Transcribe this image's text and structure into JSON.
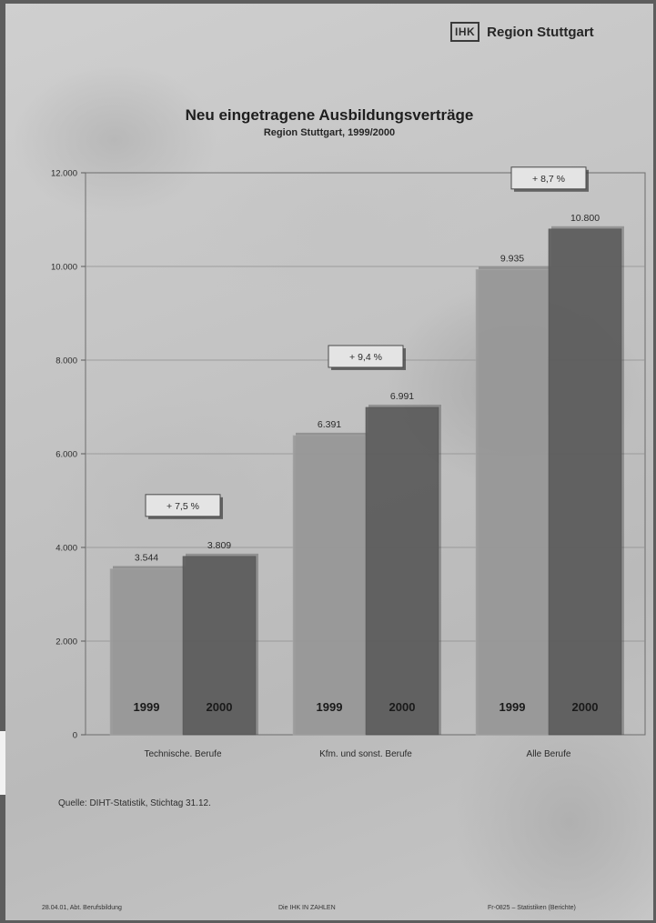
{
  "header": {
    "logo_mark": "IHK",
    "logo_text": "Region Stuttgart"
  },
  "source_note": "Quelle: DIHT-Statistik, Stichtag 31.12.",
  "footer": {
    "left": "28.04.01, Abt. Berufsbildung",
    "center": "Die IHK IN ZAHLEN",
    "right": "Fr-0825 – Statistiken (Berichte)"
  },
  "colors": {
    "bar_1999": "#9a9a9a",
    "bar_2000": "#5e5e5e",
    "gridline": "#8f8f8f"
  },
  "chart_data": {
    "type": "bar",
    "title": "Neu eingetragene Ausbildungsverträge",
    "subtitle": "Region Stuttgart, 1999/2000",
    "categories": [
      "Technische. Berufe",
      "Kfm. und sonst. Berufe",
      "Alle Berufe"
    ],
    "series": [
      {
        "name": "1999",
        "values": [
          3544,
          6391,
          9935
        ],
        "value_labels": [
          "3.544",
          "6.391",
          "9.935"
        ]
      },
      {
        "name": "2000",
        "values": [
          3809,
          6991,
          10800
        ],
        "value_labels": [
          "3.809",
          "6.991",
          "10.800"
        ]
      }
    ],
    "change_labels": [
      "+ 7,5 %",
      "+ 9,4 %",
      "+ 8,7 %"
    ],
    "ylim": [
      0,
      12000
    ],
    "yticks": [
      0,
      2000,
      4000,
      6000,
      8000,
      10000,
      12000
    ],
    "ytick_labels": [
      "0",
      "2.000",
      "4.000",
      "6.000",
      "8.000",
      "10.000",
      "12.000"
    ],
    "xlabel": "",
    "ylabel": "",
    "grid": true,
    "legend": "year labels inside bars"
  }
}
